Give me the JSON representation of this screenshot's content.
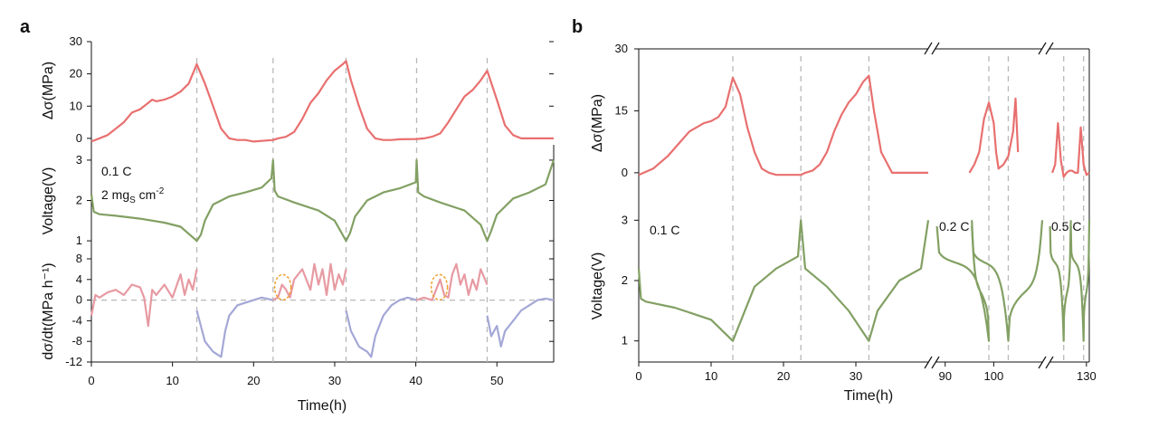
{
  "colors": {
    "stress": "#E8706F",
    "voltage": "#82A063",
    "rate_pos": "#E79AA2",
    "rate_neg": "#A4A8D6",
    "guide": "#B8B8B8",
    "circle": "#F0A030"
  },
  "panels": {
    "a": {
      "letter": "a",
      "xlabel": "Time(h)",
      "x_ticks": [
        "0",
        "10",
        "20",
        "30",
        "40",
        "50"
      ],
      "stress_label": "Δσ(MPa)",
      "voltage_label": "Voltage(V)",
      "rate_label": "dσ/dt(MPa h⁻¹)",
      "note_rate": "0.1 C",
      "note_loading": "2 mg",
      "note_loading_sub": "S",
      "note_loading_unit": " cm",
      "note_loading_sup": "-2"
    },
    "b": {
      "letter": "b",
      "xlabel": "Time(h)",
      "x_ticks": [
        "0",
        "10",
        "20",
        "30",
        "90",
        "100",
        "130"
      ],
      "stress_label": "Δσ(MPa)",
      "voltage_label": "Voltage(V)",
      "rate_labels": [
        "0.1 C",
        "0.2 C",
        "0.5 C"
      ]
    }
  },
  "chart_data": [
    {
      "panel": "a",
      "type": "line",
      "x_range": [
        0,
        57
      ],
      "xlabel": "Time(h)",
      "guides_x": [
        13,
        22.4,
        31.4,
        40.1,
        48.8
      ],
      "subplots": [
        {
          "name": "stress",
          "ylabel": "Δσ(MPa)",
          "ylim": [
            -2,
            30
          ],
          "y_ticks": [
            0,
            10,
            20,
            30
          ],
          "series": [
            {
              "color": "stress",
              "x": [
                0,
                2,
                4,
                5,
                6,
                7,
                7.5,
                8,
                9,
                10,
                11,
                12,
                13,
                14,
                15,
                16,
                17,
                18,
                19,
                20,
                22.4,
                23,
                24,
                25,
                26,
                27,
                28,
                29,
                30,
                31,
                31.4,
                32,
                33,
                34,
                35,
                36,
                37,
                38,
                40.1,
                41,
                42,
                43,
                44,
                45,
                46,
                47,
                48,
                48.8,
                50,
                51,
                52,
                53,
                54,
                55,
                57
              ],
              "y": [
                -1,
                1,
                5,
                8,
                9,
                11,
                12,
                11.5,
                12,
                13,
                14.5,
                17,
                23,
                17,
                10,
                3,
                0,
                -0.5,
                -0.5,
                -1,
                -0.5,
                0,
                0.5,
                2,
                6,
                11,
                14,
                18,
                21,
                23,
                24,
                18,
                10,
                3,
                0,
                -0.5,
                -0.5,
                -0.3,
                -0.2,
                0,
                0.5,
                1.5,
                5,
                9,
                13,
                15,
                18,
                21,
                12,
                4,
                1,
                0,
                0,
                0,
                0
              ]
            }
          ]
        },
        {
          "name": "voltage",
          "ylabel": "Voltage(V)",
          "ylim": [
            0.8,
            3.2
          ],
          "y_ticks": [
            1,
            2,
            3
          ],
          "series": [
            {
              "color": "voltage",
              "x": [
                0,
                0.3,
                1,
                3,
                6,
                9,
                11,
                13,
                13.5,
                14,
                15,
                17,
                19,
                21,
                22.2,
                22.4,
                22.6,
                23,
                25,
                28,
                30,
                31.4,
                31.9,
                32.5,
                34,
                36,
                38,
                40,
                40.1,
                40.3,
                41,
                43,
                46,
                48,
                48.8,
                49.3,
                50,
                52,
                54,
                56,
                57
              ],
              "y": [
                2.15,
                1.72,
                1.66,
                1.62,
                1.55,
                1.45,
                1.35,
                1.0,
                1.15,
                1.5,
                1.9,
                2.1,
                2.2,
                2.32,
                2.55,
                3.0,
                2.25,
                2.1,
                1.95,
                1.75,
                1.5,
                1.0,
                1.2,
                1.6,
                2.0,
                2.2,
                2.3,
                2.45,
                3.0,
                2.2,
                2.1,
                1.95,
                1.75,
                1.4,
                1.0,
                1.25,
                1.65,
                2.05,
                2.2,
                2.4,
                3.0
              ]
            }
          ]
        },
        {
          "name": "rate",
          "ylabel": "dσ/dt(MPa h⁻¹)",
          "ylim": [
            -12,
            8
          ],
          "y_ticks": [
            -12,
            -8,
            -4,
            0,
            4,
            8
          ],
          "y_tick_labels": [
            "-12",
            "-8",
            "-4",
            "0",
            "4",
            "8"
          ],
          "series": [
            {
              "color": "rate_pos",
              "x": [
                0,
                0.5,
                1,
                2,
                3,
                4,
                5,
                6,
                6.5,
                7,
                7.5,
                8,
                9,
                10,
                11,
                11.5,
                12,
                12.5,
                13
              ],
              "y": [
                -3,
                1,
                0.5,
                1.5,
                2,
                1,
                3,
                2.5,
                0.5,
                -5,
                2,
                1,
                3,
                0.5,
                5,
                1,
                4,
                2,
                6
              ]
            },
            {
              "color": "rate_neg",
              "x": [
                13,
                13.5,
                14,
                15,
                16,
                16.5,
                17,
                18,
                19,
                20,
                21,
                22.4
              ],
              "y": [
                -2,
                -5,
                -8,
                -10,
                -11,
                -6,
                -3,
                -1,
                -0.5,
                0,
                0.5,
                0
              ]
            },
            {
              "color": "rate_pos",
              "x": [
                22.4,
                23,
                23.5,
                24,
                24.5,
                25,
                26,
                27,
                27.5,
                28,
                28.5,
                29,
                29.5,
                30,
                30.5,
                31,
                31.4
              ],
              "y": [
                0,
                0.5,
                3,
                2,
                0.5,
                4,
                6,
                2,
                7,
                3,
                6,
                1,
                7,
                2,
                5,
                3,
                6
              ]
            },
            {
              "color": "rate_neg",
              "x": [
                31.4,
                32,
                33,
                34,
                34.5,
                35,
                36,
                37,
                38,
                39,
                40.1
              ],
              "y": [
                -2,
                -6,
                -9,
                -10,
                -11,
                -7,
                -3,
                -1,
                0,
                0.5,
                0
              ]
            },
            {
              "color": "rate_pos",
              "x": [
                40.1,
                41,
                42,
                42.5,
                43,
                43.5,
                44,
                44.5,
                45,
                45.5,
                46,
                46.5,
                47,
                47.5,
                48,
                48.8
              ],
              "y": [
                0,
                0.5,
                0,
                2,
                4,
                1,
                0.5,
                5,
                7,
                3,
                5,
                1,
                4,
                2,
                6,
                3
              ]
            },
            {
              "color": "rate_neg",
              "x": [
                48.8,
                49.3,
                50,
                50.5,
                51,
                52,
                53,
                54,
                55,
                56,
                57
              ],
              "y": [
                -3,
                -7,
                -5,
                -9,
                -6,
                -4,
                -2,
                -1,
                0,
                0.3,
                0
              ]
            }
          ],
          "zero_line": 0,
          "highlight_circles_x": [
            23.6,
            42.9
          ]
        }
      ]
    },
    {
      "panel": "b",
      "type": "line",
      "xlabel": "Time(h)",
      "axis_breaks": [
        "after 40",
        "after 110"
      ],
      "guides_x": [
        13,
        22.4,
        31.8,
        99,
        103,
        122,
        129
      ],
      "subplots": [
        {
          "name": "stress",
          "ylabel": "Δσ(MPa)",
          "ylim": [
            -2,
            30
          ],
          "y_ticks": [
            0,
            15,
            30
          ],
          "series": [
            {
              "color": "stress",
              "x": [
                0,
                2,
                4,
                6,
                7,
                8,
                9,
                10,
                11,
                12,
                13,
                14,
                15,
                16,
                17,
                18,
                19,
                20,
                22.4,
                23,
                24,
                25,
                26,
                27,
                28,
                29,
                30,
                31,
                31.8,
                32.5,
                33.5,
                35,
                37,
                40,
                95,
                96,
                97,
                98,
                99,
                100,
                100.5,
                101,
                102,
                103,
                104,
                104.5,
                105,
                118,
                119,
                120,
                121,
                122,
                123,
                124,
                125,
                126,
                127,
                128,
                129,
                130,
                131
              ],
              "y": [
                -0.5,
                1,
                4,
                8,
                10,
                11,
                12,
                12.5,
                13.5,
                16,
                23,
                19,
                11,
                5,
                1,
                0,
                -0.5,
                -0.5,
                -0.5,
                0,
                0.5,
                2,
                5,
                10,
                14,
                17,
                19,
                22,
                23.5,
                15,
                5,
                0,
                0,
                0,
                0,
                2,
                5,
                13,
                17,
                12,
                5,
                1,
                2,
                4,
                10,
                18,
                5,
                0,
                2,
                12,
                3,
                -1,
                0,
                0.5,
                0.5,
                0,
                0,
                11,
                2,
                -0.5,
                0
              ]
            }
          ]
        },
        {
          "name": "voltage",
          "ylabel": "Voltage(V)",
          "ylim": [
            0.8,
            3.2
          ],
          "y_ticks": [
            1,
            2,
            3
          ],
          "series": [
            {
              "color": "voltage",
              "x": [
                0,
                0.3,
                1,
                5,
                10,
                13,
                14,
                16,
                19,
                22,
                22.4,
                23,
                26,
                29,
                31.8,
                33,
                36,
                39,
                40
              ],
              "y": [
                2.2,
                1.7,
                1.65,
                1.55,
                1.35,
                1.0,
                1.3,
                1.9,
                2.2,
                2.4,
                3.0,
                2.2,
                1.9,
                1.5,
                1.0,
                1.5,
                2.0,
                2.2,
                3.0
              ]
            }
          ]
        }
      ]
    }
  ]
}
